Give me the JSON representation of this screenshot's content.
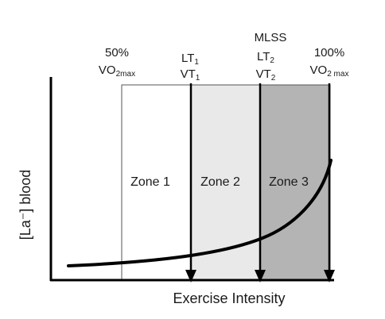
{
  "y_axis_label": "[La⁻] blood",
  "x_axis_label": "Exercise Intensity",
  "markers": [
    {
      "line1": "50%",
      "line2_main": "VO",
      "line2_sub": "2max",
      "line3_main": "",
      "line3_sub": ""
    },
    {
      "line1": "LT",
      "line1_sub": "1",
      "line2_main": "VT",
      "line2_sub": "1"
    },
    {
      "line0": "MLSS",
      "line1": "LT",
      "line1_sub": "2",
      "line2_main": "VT",
      "line2_sub": "2"
    },
    {
      "line1": "100%",
      "line2_main": "VO",
      "line2_sub": "2 max"
    }
  ],
  "zones": [
    {
      "label": "Zone 1",
      "fill": "#ffffff"
    },
    {
      "label": "Zone 2",
      "fill": "#e9e9e9"
    },
    {
      "label": "Zone 3",
      "fill": "#b4b4b4"
    }
  ],
  "colors": {
    "axis": "#000000",
    "curve": "#000000"
  }
}
